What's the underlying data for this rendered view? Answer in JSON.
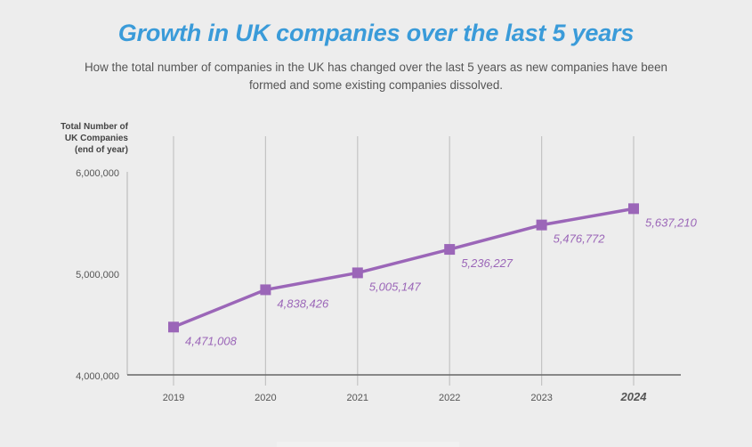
{
  "chart_data": {
    "type": "line",
    "title": "Growth in UK companies over the last 5 years",
    "subtitle": "How the total number of companies in the UK has changed over the last 5 years as new companies have been formed and some existing companies dissolved.",
    "xlabel": "",
    "ylabel": [
      "Total Number of",
      "UK Companies",
      "(end of year)"
    ],
    "categories": [
      "2019",
      "2020",
      "2021",
      "2022",
      "2023",
      "2024"
    ],
    "highlight_category": "2024",
    "series": [
      {
        "name": "Total Number of UK Companies",
        "values": [
          4471008,
          4838426,
          5005147,
          5236227,
          5476772,
          5637210
        ],
        "labels": [
          "4,471,008",
          "4,838,426",
          "5,005,147",
          "5,236,227",
          "5,476,772",
          "5,637,210"
        ],
        "color": "#9b66b8",
        "marker": "square"
      }
    ],
    "ylim": [
      4000000,
      6000000
    ],
    "yticks": [
      4000000,
      5000000,
      6000000
    ],
    "ytick_labels": [
      "4,000,000",
      "5,000,000",
      "6,000,000"
    ],
    "grid": "vertical",
    "legend": "none"
  },
  "colors": {
    "title": "#3a9bd9",
    "series": "#9b66b8",
    "background": "#ededed"
  }
}
